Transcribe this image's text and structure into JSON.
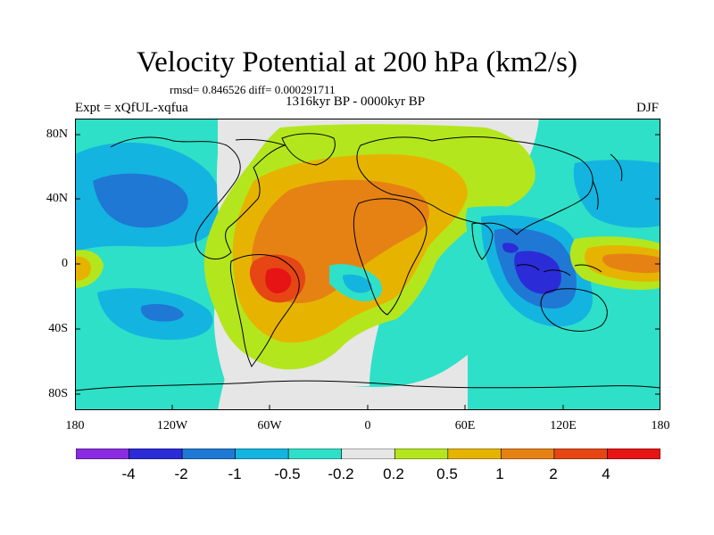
{
  "title": "Velocity Potential at 200 hPa (km2/s)",
  "stats": "rmsd= 0.846526 diff= 0.000291711",
  "experiment": "Expt = xQfUL-xqfua",
  "period": "1316kyr BP - 0000kyr BP",
  "season": "DJF",
  "lat_labels": [
    "80N",
    "40N",
    "0",
    "40S",
    "80S"
  ],
  "lon_labels": [
    "180",
    "120W",
    "60W",
    "0",
    "60E",
    "120E",
    "180"
  ],
  "colorbar": {
    "labels": [
      "-4",
      "-2",
      "-1",
      "-0.5",
      "-0.2",
      "0.2",
      "0.5",
      "1",
      "2",
      "4"
    ],
    "colors": [
      "#8a2be2",
      "#2b2bd8",
      "#1f78d4",
      "#14b4e0",
      "#2ee0c8",
      "#e6e6e6",
      "#b4e61e",
      "#e6b400",
      "#e68214",
      "#e64614",
      "#e61414"
    ]
  },
  "fill_colors": {
    "neutral": "#e6e6e6",
    "level_m02": "#2ee0c8",
    "level_m05": "#14b4e0",
    "level_m1": "#1f78d4",
    "level_m2": "#2b2bd8",
    "level_p02": "#b4e61e",
    "level_p05": "#e6b400",
    "level_p1": "#e68214",
    "level_p2": "#e64614",
    "coast": "#000000"
  }
}
